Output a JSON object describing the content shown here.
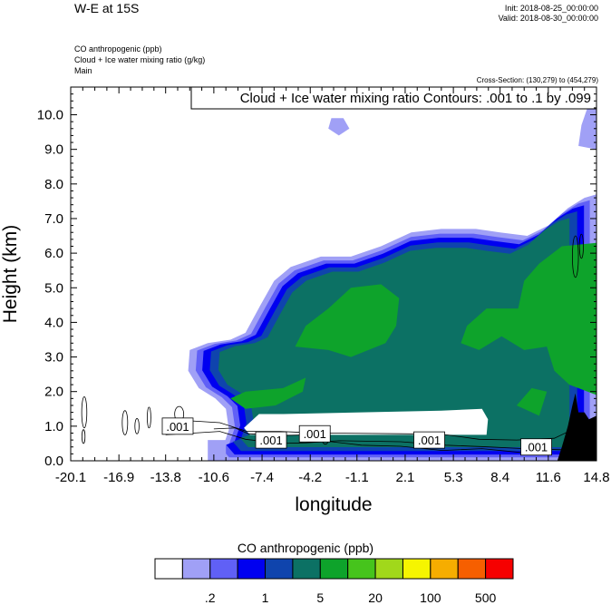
{
  "header": {
    "title": "W-E at 15S",
    "init": "Init: 2018-08-25_00:00:00",
    "valid": "Valid: 2018-08-30_00:00:00",
    "field_lines": [
      "CO anthropogenic   (ppb)",
      "Cloud + Ice water mixing ratio   (g/kg)",
      "Main"
    ],
    "cross_section": "Cross-Section: (130,279) to (454,279)",
    "contour_info": "Cloud + Ice water mixing ratio Contours: .001 to .1 by .099"
  },
  "colors": {
    "levels": [
      "#ffffff",
      "#a0a0f6",
      "#6060f6",
      "#0000f0",
      "#0f44ad",
      "#0c7164",
      "#0ea32b",
      "#46c41c",
      "#a1d81b",
      "#f6f500",
      "#f6ad00",
      "#f65f00",
      "#f60000"
    ],
    "terrain": "#000000"
  },
  "chart_data": {
    "type": "heatmap",
    "title": "",
    "xlabel": "longitude",
    "ylabel": "Height (km)",
    "xlim": [
      -20.1,
      14.8
    ],
    "ylim": [
      0.0,
      10.8
    ],
    "x_ticks": [
      "-20.1",
      "-16.9",
      "-13.8",
      "-10.6",
      "-7.4",
      "-4.2",
      "-1.1",
      "2.1",
      "5.3",
      "8.4",
      "11.6",
      "14.8"
    ],
    "y_ticks": [
      "0.0",
      "1.0",
      "2.0",
      "3.0",
      "4.0",
      "5.0",
      "6.0",
      "7.0",
      "8.0",
      "9.0",
      "10.0"
    ],
    "colorbar": {
      "title": "CO anthropogenic  (ppb)",
      "labels": [
        ".2",
        "1",
        "5",
        "20",
        "100",
        "500"
      ]
    },
    "contour_labels": [
      {
        "text": ".001",
        "x": -13.0,
        "y": 1.0
      },
      {
        "text": ".001",
        "x": -6.8,
        "y": 0.6
      },
      {
        "text": ".001",
        "x": -3.9,
        "y": 0.78
      },
      {
        "text": ".001",
        "x": 3.7,
        "y": 0.6
      },
      {
        "text": ".001",
        "x": 10.8,
        "y": 0.4
      }
    ]
  }
}
